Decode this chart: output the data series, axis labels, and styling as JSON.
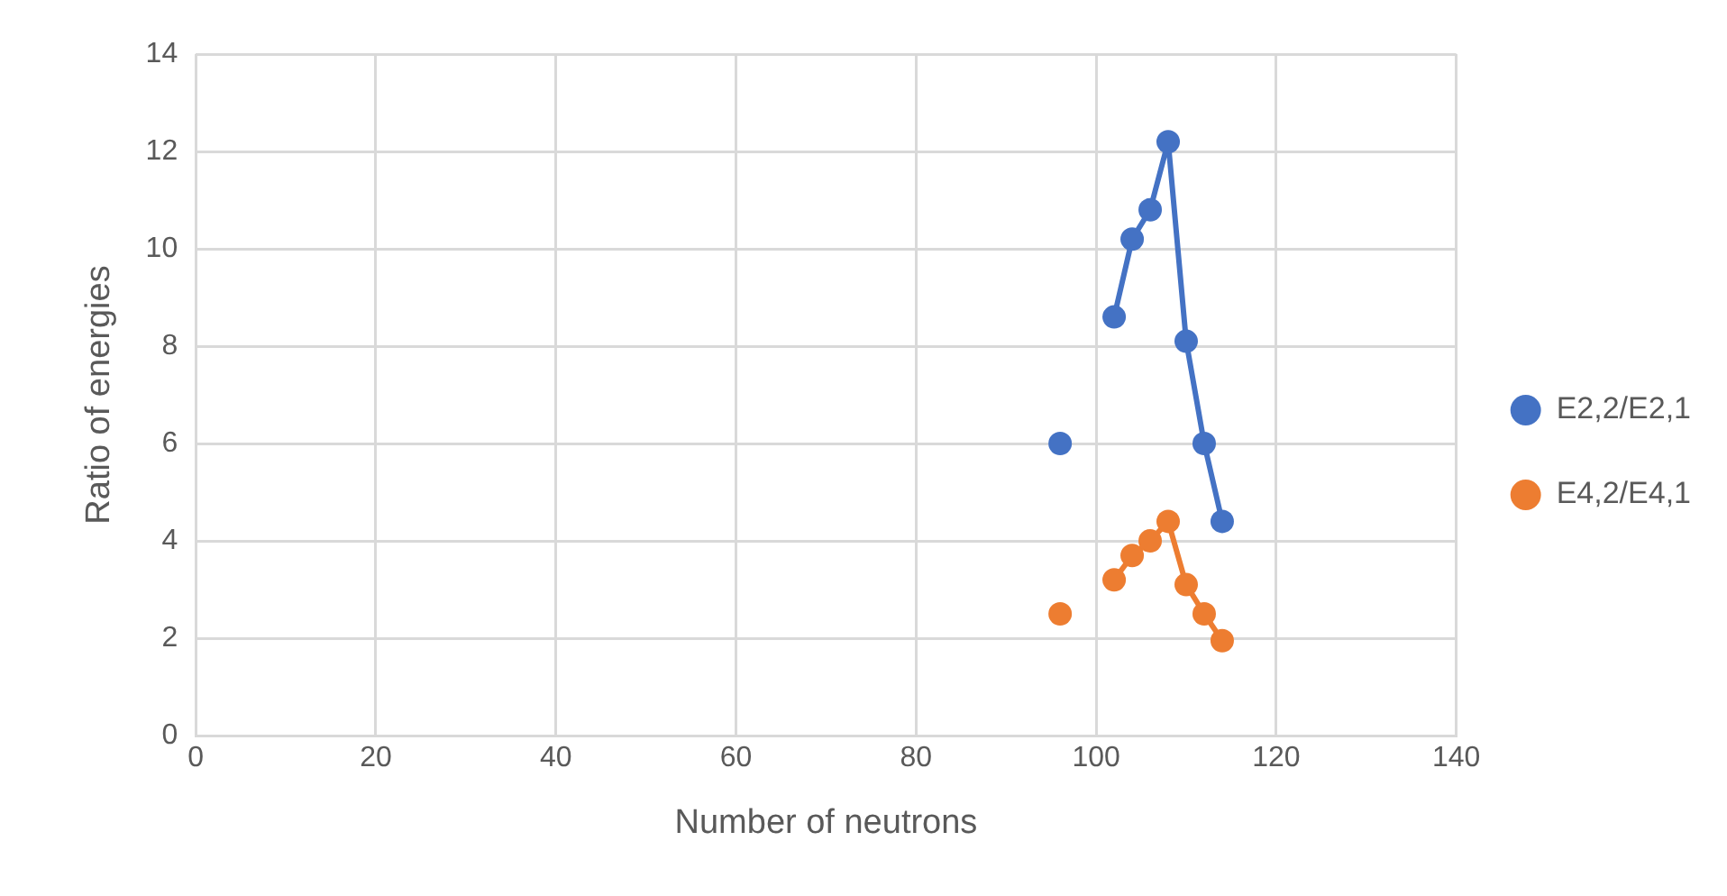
{
  "chart_data": {
    "type": "line",
    "xlabel": "Number of neutrons",
    "ylabel": "Ratio of energies",
    "xlim": [
      0,
      140
    ],
    "xticks": [
      0,
      20,
      40,
      60,
      80,
      100,
      120,
      140
    ],
    "ylim": [
      0,
      14
    ],
    "yticks": [
      0,
      2,
      4,
      6,
      8,
      10,
      12,
      14
    ],
    "grid": true,
    "legend": "right",
    "marker": "circle",
    "line_style": "solid",
    "series": [
      {
        "name": "E2,2/E2,1",
        "color": "#4472c4",
        "x": [
          96,
          100,
          102,
          104,
          106,
          108,
          110,
          112,
          114
        ],
        "values": [
          6.0,
          null,
          8.6,
          10.2,
          10.8,
          12.2,
          8.1,
          6.0,
          4.4
        ]
      },
      {
        "name": "E4,2/E4,1",
        "color": "#ed7d31",
        "x": [
          96,
          100,
          102,
          104,
          106,
          108,
          110,
          112,
          114
        ],
        "values": [
          2.5,
          null,
          3.2,
          3.7,
          4.0,
          4.4,
          3.1,
          2.5,
          1.95
        ]
      }
    ]
  }
}
